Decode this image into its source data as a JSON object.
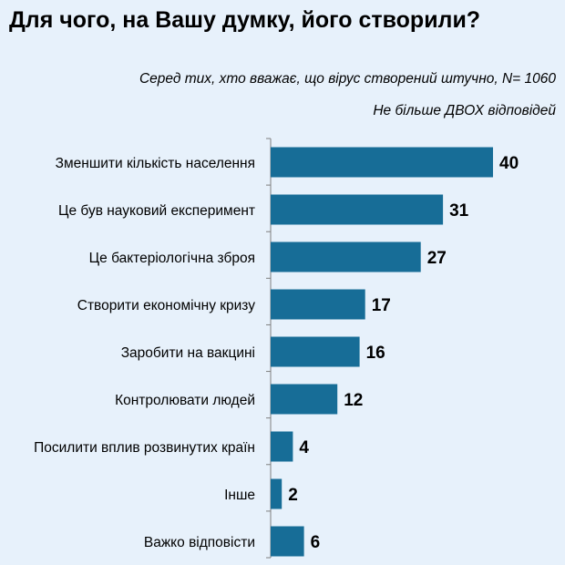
{
  "header": {
    "title": "Для чого, на Вашу думку, його створили?",
    "subtitle_line1": "Серед тих, хто вважає, що вірус створений штучно, N= 1060",
    "subtitle_line2": "Не більше ДВОХ відповідей"
  },
  "colors": {
    "bar": "#176d97",
    "background": "#e7f1fb",
    "axis": "#7f7f7f"
  },
  "chart_data": {
    "type": "bar",
    "orientation": "horizontal",
    "categories": [
      "Зменшити кількість населення",
      "Це був науковий експеримент",
      "Це бактеріологічна зброя",
      "Створити економічну кризу",
      "Заробити на вакцині",
      "Контролювати людей",
      "Посилити вплив розвинутих країн",
      "Інше",
      "Важко відповісти"
    ],
    "values": [
      40,
      31,
      27,
      17,
      16,
      12,
      4,
      2,
      6
    ],
    "xlim": [
      0,
      40
    ],
    "grid": false,
    "legend": "none"
  }
}
